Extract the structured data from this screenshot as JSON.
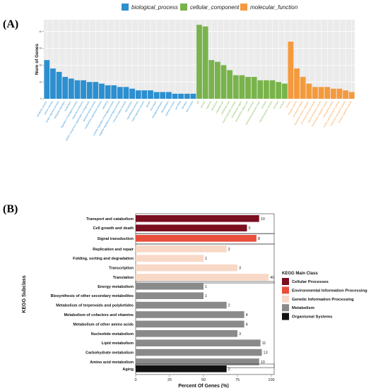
{
  "panels": {
    "a_label": "(A)",
    "b_label": "(B)"
  },
  "chart_data": [
    {
      "type": "bar",
      "panel": "A",
      "ylabel": "Num of Genes",
      "xlabel": "",
      "ylim": [
        0,
        47
      ],
      "yticks": [
        0,
        10,
        20,
        30,
        40
      ],
      "ytick_labels": [
        "0",
        "10",
        "20",
        "30",
        "40"
      ],
      "grid": true,
      "legend_position": "top",
      "series": [
        {
          "name": "biological_process",
          "color": "#2b8fd0",
          "categories": [
            "metabolic process",
            "cellular process",
            "single-organism process",
            "biological regulation",
            "localization",
            "regulation of biological process",
            "response to stimulus",
            "cellular component organization or biogenesis",
            "developmental process",
            "multicellular organismal process",
            "signaling",
            "positive regulation of biological process",
            "negative regulation of biological process",
            "immune system process",
            "reproduction",
            "reproductive process",
            "multi-organism process",
            "growth",
            "locomotion",
            "biological adhesion",
            "detoxification",
            "rhythmic process",
            "cell killing",
            "behavior",
            "viral process"
          ],
          "values": [
            23,
            18,
            16,
            13,
            12,
            11,
            11,
            10,
            10,
            9,
            8,
            8,
            7,
            7,
            6,
            5,
            5,
            5,
            4,
            4,
            4,
            3,
            3,
            3,
            3
          ]
        },
        {
          "name": "cellular_component",
          "color": "#79b34b",
          "categories": [
            "cell",
            "cell part",
            "organelle",
            "membrane",
            "organelle part",
            "membrane part",
            "macromolecular complex",
            "extracellular region",
            "extracellular region part",
            "cell junction",
            "membrane-enclosed lumen",
            "synapse",
            "supramolecular complex",
            "symplast",
            "nucleoid"
          ],
          "values": [
            44,
            43,
            23,
            22,
            20,
            17,
            14,
            14,
            13,
            13,
            11,
            11,
            11,
            10,
            9
          ]
        },
        {
          "name": "molecular_function",
          "color": "#f49a3d",
          "categories": [
            "binding",
            "catalytic activity",
            "transporter activity",
            "molecular function regulator",
            "structural molecule activity",
            "signal transducer activity",
            "transcription regulator activity",
            "antioxidant activity",
            "nucleic acid binding TF activity",
            "molecular transducer activity",
            "enzyme regulator activity"
          ],
          "values": [
            34,
            18,
            13,
            9,
            7,
            7,
            7,
            6,
            6,
            5,
            4
          ]
        }
      ]
    },
    {
      "type": "bar",
      "panel": "B",
      "orientation": "horizontal",
      "xlabel": "Percent Of Genes (%)",
      "ylabel": "KEGG Subclass",
      "xlim": [
        0,
        100
      ],
      "xticks": [
        0,
        25,
        50,
        75,
        100
      ],
      "xtick_labels": [
        "0",
        "25",
        "50",
        "75",
        "100"
      ],
      "legend_title": "KEGG Main Class",
      "legend_position": "right",
      "legend": [
        {
          "name": "Cellular Processes",
          "color": "#7a0f1f"
        },
        {
          "name": "Environmental Information Processing",
          "color": "#e94e3c"
        },
        {
          "name": "Genetic Information Processing",
          "color": "#f8d8c6"
        },
        {
          "name": "Metabolism",
          "color": "#8a8a8a"
        },
        {
          "name": "Organismal Systems",
          "color": "#111111"
        }
      ],
      "groups": [
        {
          "class": "Cellular Processes",
          "color": "#7a0f1f",
          "bars": [
            {
              "label": "Transport and catabolism",
              "percent": 91,
              "count": "10"
            },
            {
              "label": "Cell growth and death",
              "percent": 82,
              "count": "5"
            }
          ]
        },
        {
          "class": "Environmental Information Processing",
          "color": "#e94e3c",
          "bars": [
            {
              "label": "Signal transduction",
              "percent": 89,
              "count": "8"
            }
          ]
        },
        {
          "class": "Genetic Information Processing",
          "color": "#f8d8c6",
          "bars": [
            {
              "label": "Replication and repair",
              "percent": 67,
              "count": "2"
            },
            {
              "label": "Folding, sorting and degradation",
              "percent": 50,
              "count": "1"
            },
            {
              "label": "Transcription",
              "percent": 75,
              "count": "3"
            },
            {
              "label": "Translation",
              "percent": 98,
              "count": "40"
            }
          ]
        },
        {
          "class": "Metabolism",
          "color": "#8a8a8a",
          "bars": [
            {
              "label": "Energy metabolism",
              "percent": 50,
              "count": "1"
            },
            {
              "label": "Biosynthesis of other secondary metabolites",
              "percent": 50,
              "count": "1"
            },
            {
              "label": "Metabolism of terpenoids and polyketides",
              "percent": 67,
              "count": "2"
            },
            {
              "label": "Metabolism of cofactors and vitamins",
              "percent": 80,
              "count": "4"
            },
            {
              "label": "Metabolism of other amino acids",
              "percent": 80,
              "count": "4"
            },
            {
              "label": "Nucleotide metabolism",
              "percent": 75,
              "count": "3"
            },
            {
              "label": "Lipid metabolism",
              "percent": 92,
              "count": "11"
            },
            {
              "label": "Carbohydrate metabolism",
              "percent": 93,
              "count": "13"
            },
            {
              "label": "Amino acid metabolism",
              "percent": 91,
              "count": "10"
            }
          ]
        },
        {
          "class": "Organismal Systems",
          "color": "#111111",
          "bars": [
            {
              "label": "Aging",
              "percent": 67,
              "count": "2"
            }
          ]
        }
      ]
    }
  ]
}
